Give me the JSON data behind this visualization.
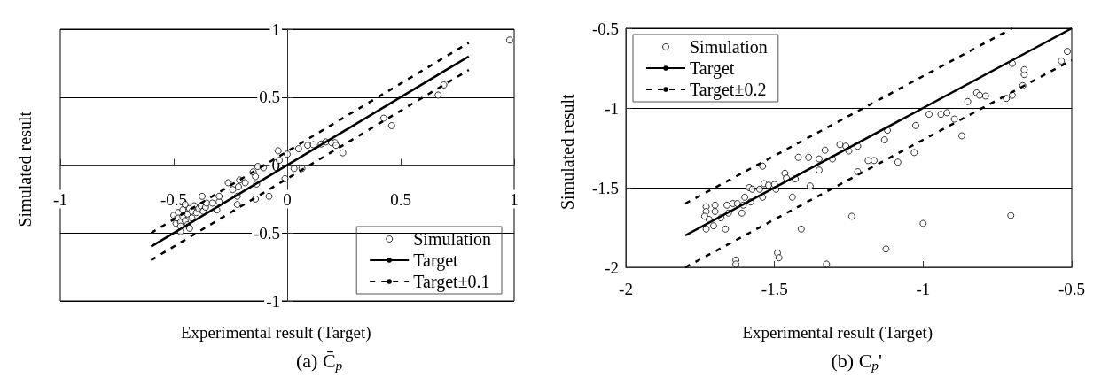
{
  "chart_data": [
    {
      "type": "scatter",
      "title": "(a) C̄$_{p}$",
      "xlabel": "Experimental result (Target)",
      "ylabel": "Simulated result",
      "xlim": [
        -1,
        1
      ],
      "ylim": [
        -1,
        1
      ],
      "xticks": [
        -1,
        -0.5,
        0,
        0.5,
        1
      ],
      "yticks": [
        -1,
        -0.5,
        0,
        0.5,
        1
      ],
      "grid": "y",
      "legend": "bottom right",
      "series": [
        {
          "name": "Simulation",
          "type": "scatter",
          "marker": "circle",
          "color": "#000000",
          "x": [
            -0.5,
            -0.49,
            -0.49,
            -0.48,
            -0.48,
            -0.47,
            -0.47,
            -0.46,
            -0.46,
            -0.45,
            -0.45,
            -0.44,
            -0.44,
            -0.43,
            -0.43,
            -0.42,
            -0.42,
            -0.47,
            -0.41,
            -0.4,
            -0.39,
            -0.38,
            -0.37,
            -0.36,
            -0.375,
            -0.355,
            -0.33,
            -0.3,
            -0.3,
            -0.31,
            -0.26,
            -0.24,
            -0.215,
            -0.21,
            -0.22,
            -0.22,
            -0.185,
            -0.15,
            -0.14,
            -0.135,
            -0.13,
            -0.105,
            -0.14,
            -0.08,
            -0.04,
            -0.035,
            0,
            -0.01,
            0.03,
            0.065,
            0.05,
            0.09,
            0.115,
            0.15,
            0.17,
            0.195,
            0.21,
            0.215,
            0.245,
            0.425,
            0.46,
            0.665,
            0.69,
            0.98
          ],
          "values": [
            -0.37,
            -0.4,
            -0.43,
            -0.35,
            -0.39,
            -0.42,
            -0.45,
            -0.33,
            -0.38,
            -0.41,
            -0.29,
            -0.36,
            -0.44,
            -0.32,
            -0.465,
            -0.39,
            -0.34,
            -0.49,
            -0.3,
            -0.35,
            -0.32,
            -0.3,
            -0.34,
            -0.31,
            -0.23,
            -0.28,
            -0.28,
            -0.27,
            -0.23,
            -0.33,
            -0.13,
            -0.18,
            -0.16,
            -0.11,
            -0.23,
            -0.29,
            -0.13,
            -0.05,
            -0.085,
            -0.14,
            -0.01,
            -0.02,
            -0.25,
            -0.23,
            0.105,
            0.035,
            0.08,
            -0.1,
            -0.025,
            -0.025,
            0.12,
            0.145,
            0.15,
            0.155,
            0.17,
            0.165,
            0.165,
            0.145,
            0.09,
            0.345,
            0.29,
            0.515,
            0.59,
            0.92
          ]
        },
        {
          "name": "Target",
          "type": "line",
          "line_style": "solid",
          "color": "#000000",
          "x": [
            -0.6,
            0.8
          ],
          "values": [
            -0.6,
            0.8
          ]
        },
        {
          "name": "Target±0.1",
          "type": "line",
          "line_style": "dashed",
          "color": "#000000",
          "x": [
            -0.6,
            0.8
          ],
          "values": [
            -0.5,
            0.9
          ]
        },
        {
          "type": "line",
          "line_style": "dashed",
          "color": "#000000",
          "x": [
            -0.6,
            0.8
          ],
          "values": [
            -0.7,
            0.7
          ]
        }
      ]
    },
    {
      "type": "scatter",
      "title": "(b) C$_{p}$'",
      "xlabel": "Experimental result (Target)",
      "ylabel": "Simulated result",
      "xlim": [
        -2,
        -0.5
      ],
      "ylim": [
        -2,
        -0.5
      ],
      "xticks": [
        -2,
        -1.5,
        -1,
        -0.5
      ],
      "yticks": [
        -2,
        -1.5,
        -1,
        -0.5
      ],
      "grid": "y",
      "legend": "top left",
      "series": [
        {
          "name": "Simulation",
          "type": "scatter",
          "marker": "circle",
          "color": "#000000",
          "x": [
            -1.73,
            -1.73,
            -1.735,
            -1.72,
            -1.7,
            -1.7,
            -1.68,
            -1.66,
            -1.655,
            -1.64,
            -1.625,
            -1.61,
            -1.605,
            -1.6,
            -1.58,
            -1.585,
            -1.575,
            -1.55,
            -1.54,
            -1.535,
            -1.52,
            -1.5,
            -1.495,
            -1.465,
            -1.46,
            -1.43,
            -1.44,
            -1.42,
            -1.385,
            -1.38,
            -1.73,
            -1.705,
            -1.665,
            -1.54,
            -1.41,
            -1.49,
            -1.485,
            -1.63,
            -1.63,
            -1.35,
            -1.33,
            -1.305,
            -1.35,
            -1.28,
            -1.26,
            -1.25,
            -1.22,
            -1.185,
            -1.165,
            -1.22,
            -1.13,
            -1.12,
            -1.085,
            -1.03,
            -1.025,
            -0.98,
            -0.94,
            -0.92,
            -0.895,
            -0.87,
            -0.85,
            -0.82,
            -0.81,
            -0.79,
            -0.72,
            -0.7,
            -0.7,
            -0.665,
            -0.66,
            -0.66,
            -0.535,
            -0.515,
            -1.24,
            -1,
            -0.705,
            -1.125,
            -1.325
          ],
          "values": [
            -1.62,
            -1.65,
            -1.68,
            -1.7,
            -1.61,
            -1.65,
            -1.69,
            -1.61,
            -1.66,
            -1.6,
            -1.6,
            -1.66,
            -1.61,
            -1.56,
            -1.59,
            -1.5,
            -1.51,
            -1.51,
            -1.56,
            -1.475,
            -1.485,
            -1.48,
            -1.51,
            -1.41,
            -1.44,
            -1.445,
            -1.56,
            -1.31,
            -1.31,
            -1.49,
            -1.76,
            -1.74,
            -1.76,
            -1.365,
            -1.76,
            -1.91,
            -1.94,
            -1.955,
            -1.98,
            -1.32,
            -1.265,
            -1.32,
            -1.39,
            -1.23,
            -1.24,
            -1.27,
            -1.24,
            -1.33,
            -1.33,
            -1.4,
            -1.2,
            -1.14,
            -1.34,
            -1.28,
            -1.11,
            -1.04,
            -1.04,
            -1.03,
            -1.07,
            -1.175,
            -0.96,
            -0.905,
            -0.92,
            -0.925,
            -0.94,
            -0.92,
            -0.72,
            -0.86,
            -0.79,
            -0.76,
            -0.705,
            -0.645,
            -1.68,
            -1.725,
            -1.675,
            -1.885,
            -1.98
          ]
        },
        {
          "name": "Target",
          "type": "line",
          "line_style": "solid",
          "color": "#000000",
          "x": [
            -1.8,
            -0.5
          ],
          "values": [
            -1.8,
            -0.5
          ]
        },
        {
          "name": "Target±0.2",
          "type": "line",
          "line_style": "dashed",
          "color": "#000000",
          "x": [
            -1.8,
            -0.7
          ],
          "values": [
            -1.6,
            -0.5
          ]
        },
        {
          "type": "line",
          "line_style": "dashed",
          "color": "#000000",
          "x": [
            -1.8,
            -0.5
          ],
          "values": [
            -2,
            -0.7
          ]
        }
      ]
    }
  ]
}
